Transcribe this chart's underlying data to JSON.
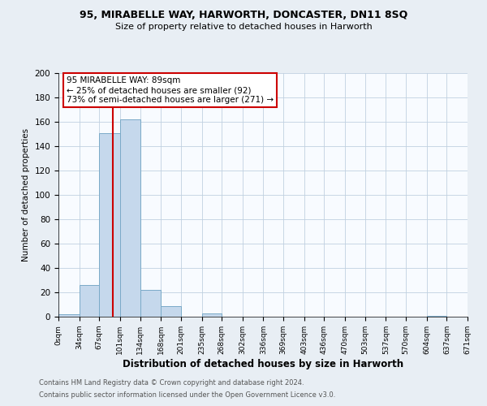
{
  "title1": "95, MIRABELLE WAY, HARWORTH, DONCASTER, DN11 8SQ",
  "title2": "Size of property relative to detached houses in Harworth",
  "xlabel": "Distribution of detached houses by size in Harworth",
  "ylabel": "Number of detached properties",
  "bin_edges": [
    0,
    34,
    67,
    101,
    134,
    168,
    201,
    235,
    268,
    302,
    336,
    369,
    403,
    436,
    470,
    503,
    537,
    570,
    604,
    637,
    671
  ],
  "bin_counts": [
    2,
    26,
    151,
    162,
    22,
    9,
    0,
    3,
    0,
    0,
    0,
    0,
    0,
    0,
    0,
    0,
    0,
    0,
    1,
    0
  ],
  "bar_color": "#c5d8ec",
  "bar_edge_color": "#7aaac8",
  "property_size": 89,
  "vline_color": "#cc0000",
  "annotation_box_color": "#cc0000",
  "annotation_text_line1": "95 MIRABELLE WAY: 89sqm",
  "annotation_text_line2": "← 25% of detached houses are smaller (92)",
  "annotation_text_line3": "73% of semi-detached houses are larger (271) →",
  "ylim": [
    0,
    200
  ],
  "yticks": [
    0,
    20,
    40,
    60,
    80,
    100,
    120,
    140,
    160,
    180,
    200
  ],
  "tick_labels": [
    "0sqm",
    "34sqm",
    "67sqm",
    "101sqm",
    "134sqm",
    "168sqm",
    "201sqm",
    "235sqm",
    "268sqm",
    "302sqm",
    "336sqm",
    "369sqm",
    "403sqm",
    "436sqm",
    "470sqm",
    "503sqm",
    "537sqm",
    "570sqm",
    "604sqm",
    "637sqm",
    "671sqm"
  ],
  "footer1": "Contains HM Land Registry data © Crown copyright and database right 2024.",
  "footer2": "Contains public sector information licensed under the Open Government Licence v3.0.",
  "background_color": "#e8eef4",
  "plot_bg_color": "#f8fbff"
}
